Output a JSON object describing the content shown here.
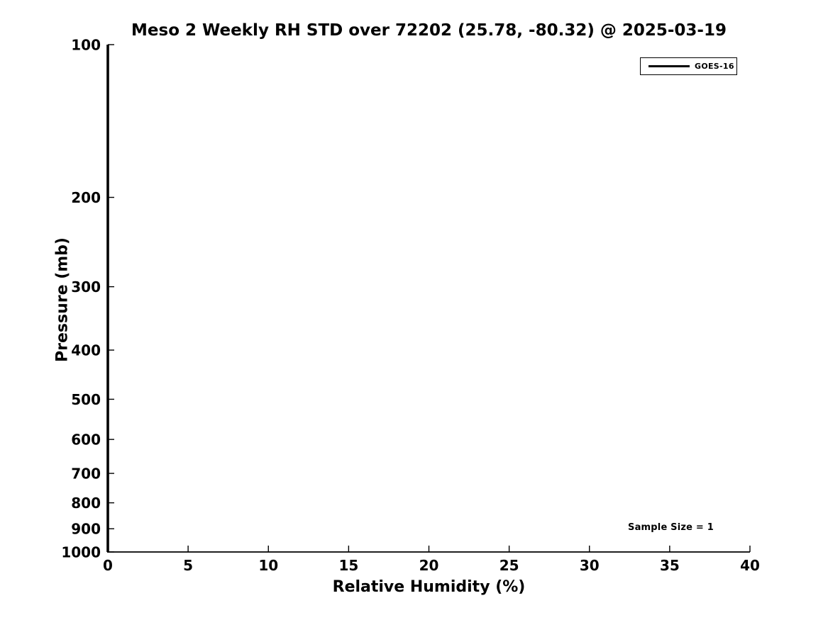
{
  "chart_data": {
    "type": "line",
    "title": "Meso 2 Weekly RH STD over 72202 (25.78, -80.32) @ 2025-03-19",
    "xlabel": "Relative Humidity (%)",
    "ylabel": "Pressure (mb)",
    "xlim": [
      0,
      40
    ],
    "ylim": [
      1000,
      100
    ],
    "x_ticks": [
      0,
      5,
      10,
      15,
      20,
      25,
      30,
      35,
      40
    ],
    "y_ticks": [
      100,
      200,
      300,
      400,
      500,
      600,
      700,
      800,
      900,
      1000
    ],
    "x_scale": "linear",
    "y_scale": "log",
    "y_axis_inverted": true,
    "grid": false,
    "legend": {
      "position": "upper right",
      "entries": [
        {
          "label": "GOES-16",
          "color": "#000000",
          "linewidth": 3
        }
      ]
    },
    "annotations": [
      {
        "text": "Sample Size = 1"
      }
    ],
    "series": [
      {
        "name": "GOES-16",
        "color": "#000000",
        "linewidth": 3.6,
        "x": [
          0,
          0
        ],
        "pressure": [
          100,
          1000
        ]
      }
    ]
  },
  "colors": {
    "background": "#ffffff",
    "axis": "#000000",
    "text": "#000000"
  }
}
